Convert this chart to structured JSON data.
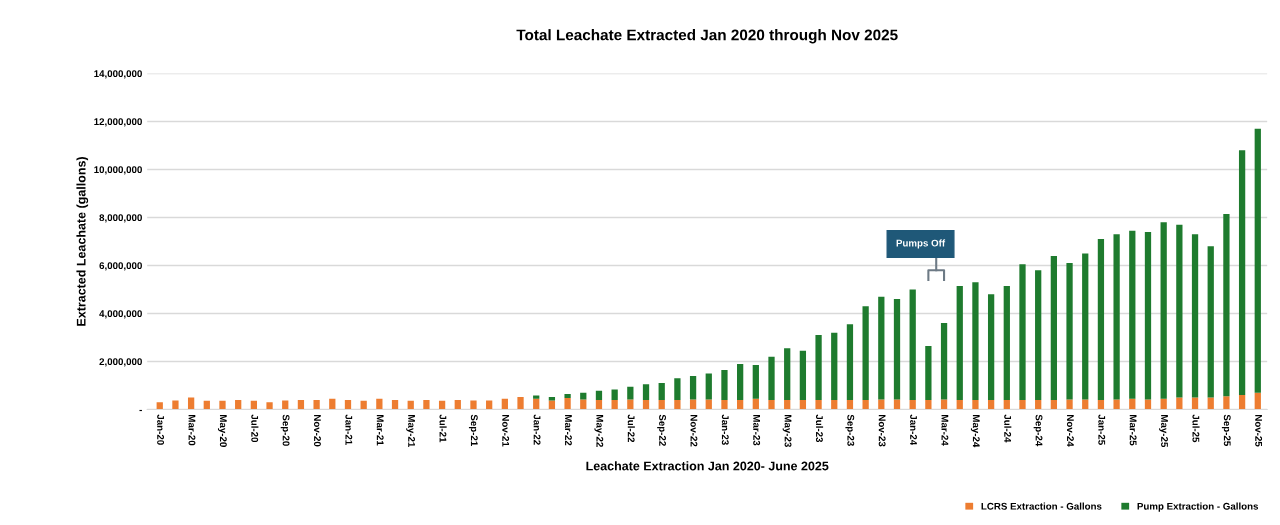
{
  "chart_data": {
    "type": "bar",
    "stacked": true,
    "title": "Total Leachate Extracted Jan 2020 through Nov 2025",
    "xlabel": "Leachate Extraction Jan 2020- June 2025",
    "ylabel": "Extracted Leachate (gallons)",
    "categories": [
      "Jan-20",
      null,
      "Mar-20",
      null,
      "May-20",
      null,
      "Jul-20",
      null,
      "Sep-20",
      null,
      "Nov-20",
      null,
      "Jan-21",
      null,
      "Mar-21",
      null,
      "May-21",
      null,
      "Jul-21",
      null,
      "Sep-21",
      null,
      "Nov-21",
      null,
      "Jan-22",
      null,
      "Mar-22",
      null,
      "May-22",
      null,
      "Jul-22",
      null,
      "Sep-22",
      null,
      "Nov-22",
      null,
      "Jan-23",
      null,
      "Mar-23",
      null,
      "May-23",
      null,
      "Jul-23",
      null,
      "Sep-23",
      null,
      "Nov-23",
      null,
      "Jan-24",
      null,
      "Mar-24",
      null,
      "May-24",
      null,
      "Jul-24",
      null,
      "Sep-24",
      null,
      "Nov-24",
      null,
      "Jan-25",
      null,
      "Mar-25",
      null,
      "May-25",
      null,
      "Jul-25",
      null,
      "Sep-25",
      null,
      "Nov-25"
    ],
    "series": [
      {
        "name": "LCRS Extraction - Gallons",
        "color": "#ed7d31",
        "values": [
          300000,
          380000,
          500000,
          360000,
          360000,
          400000,
          360000,
          300000,
          380000,
          400000,
          400000,
          450000,
          400000,
          360000,
          450000,
          400000,
          360000,
          400000,
          360000,
          400000,
          380000,
          380000,
          450000,
          520000,
          450000,
          380000,
          480000,
          420000,
          400000,
          400000,
          420000,
          400000,
          400000,
          400000,
          420000,
          420000,
          400000,
          400000,
          450000,
          400000,
          400000,
          400000,
          400000,
          400000,
          400000,
          400000,
          420000,
          420000,
          400000,
          400000,
          420000,
          400000,
          400000,
          400000,
          400000,
          400000,
          400000,
          400000,
          420000,
          420000,
          400000,
          420000,
          450000,
          420000,
          450000,
          500000,
          500000,
          500000,
          550000,
          600000,
          700000
        ]
      },
      {
        "name": "Pump Extraction - Gallons",
        "color": "#1e7b2e",
        "values": [
          0,
          0,
          0,
          0,
          0,
          0,
          0,
          0,
          0,
          0,
          0,
          0,
          0,
          0,
          0,
          0,
          0,
          0,
          0,
          0,
          0,
          0,
          0,
          0,
          130000,
          140000,
          170000,
          280000,
          380000,
          430000,
          530000,
          650000,
          700000,
          900000,
          980000,
          1080000,
          1250000,
          1500000,
          1400000,
          1800000,
          2150000,
          2050000,
          2700000,
          2800000,
          3150000,
          3900000,
          4280000,
          4180000,
          4600000,
          2250000,
          3180000,
          4750000,
          4900000,
          4400000,
          4750000,
          5650000,
          5400000,
          6000000,
          5680000,
          6080000,
          6700000,
          6880000,
          7000000,
          6980000,
          7350000,
          7200000,
          6800000,
          6300000,
          7600000,
          10200000,
          11000000
        ]
      }
    ],
    "ylim": [
      0,
      14000000
    ],
    "yticks": [
      {
        "value": 0,
        "label": "-"
      },
      {
        "value": 2000000,
        "label": "2,000,000"
      },
      {
        "value": 4000000,
        "label": "4,000,000"
      },
      {
        "value": 6000000,
        "label": "6,000,000"
      },
      {
        "value": 8000000,
        "label": "8,000,000"
      },
      {
        "value": 10000000,
        "label": "10,000,000"
      },
      {
        "value": 12000000,
        "label": "12,000,000"
      },
      {
        "value": 14000000,
        "label": "14,000,000"
      }
    ],
    "grid": "y",
    "legend": "bottom right",
    "annotations": [
      "Pumps Off"
    ]
  }
}
